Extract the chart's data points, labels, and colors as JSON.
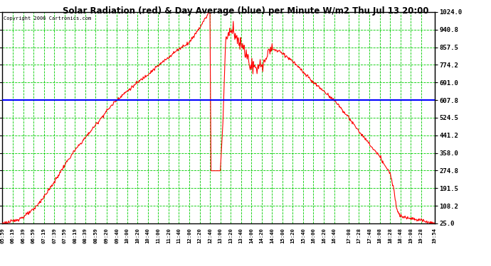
{
  "title": "Solar Radiation (red) & Day Average (blue) per Minute W/m2 Thu Jul 13 20:00",
  "copyright": "Copyright 2006 Cartronics.com",
  "y_min": 25.0,
  "y_max": 1024.0,
  "y_ticks": [
    25.0,
    108.2,
    191.5,
    274.8,
    358.0,
    441.2,
    524.5,
    607.8,
    691.0,
    774.2,
    857.5,
    940.8,
    1024.0
  ],
  "day_average": 607.8,
  "plot_bg_color": "#ffffff",
  "fig_bg_color": "#ffffff",
  "line_color": "#ff0000",
  "avg_line_color": "#0000ff",
  "grid_color": "#00cc00",
  "x_labels": [
    "05:59",
    "06:19",
    "06:39",
    "06:59",
    "07:19",
    "07:39",
    "07:59",
    "08:19",
    "08:39",
    "08:59",
    "09:20",
    "09:40",
    "10:00",
    "10:20",
    "10:40",
    "11:00",
    "11:20",
    "11:40",
    "12:00",
    "12:20",
    "12:40",
    "13:00",
    "13:20",
    "13:40",
    "14:00",
    "14:20",
    "14:40",
    "15:00",
    "15:20",
    "15:40",
    "16:00",
    "16:20",
    "16:40",
    "17:08",
    "17:28",
    "17:48",
    "18:08",
    "18:28",
    "18:48",
    "19:08",
    "19:28",
    "19:54"
  ]
}
